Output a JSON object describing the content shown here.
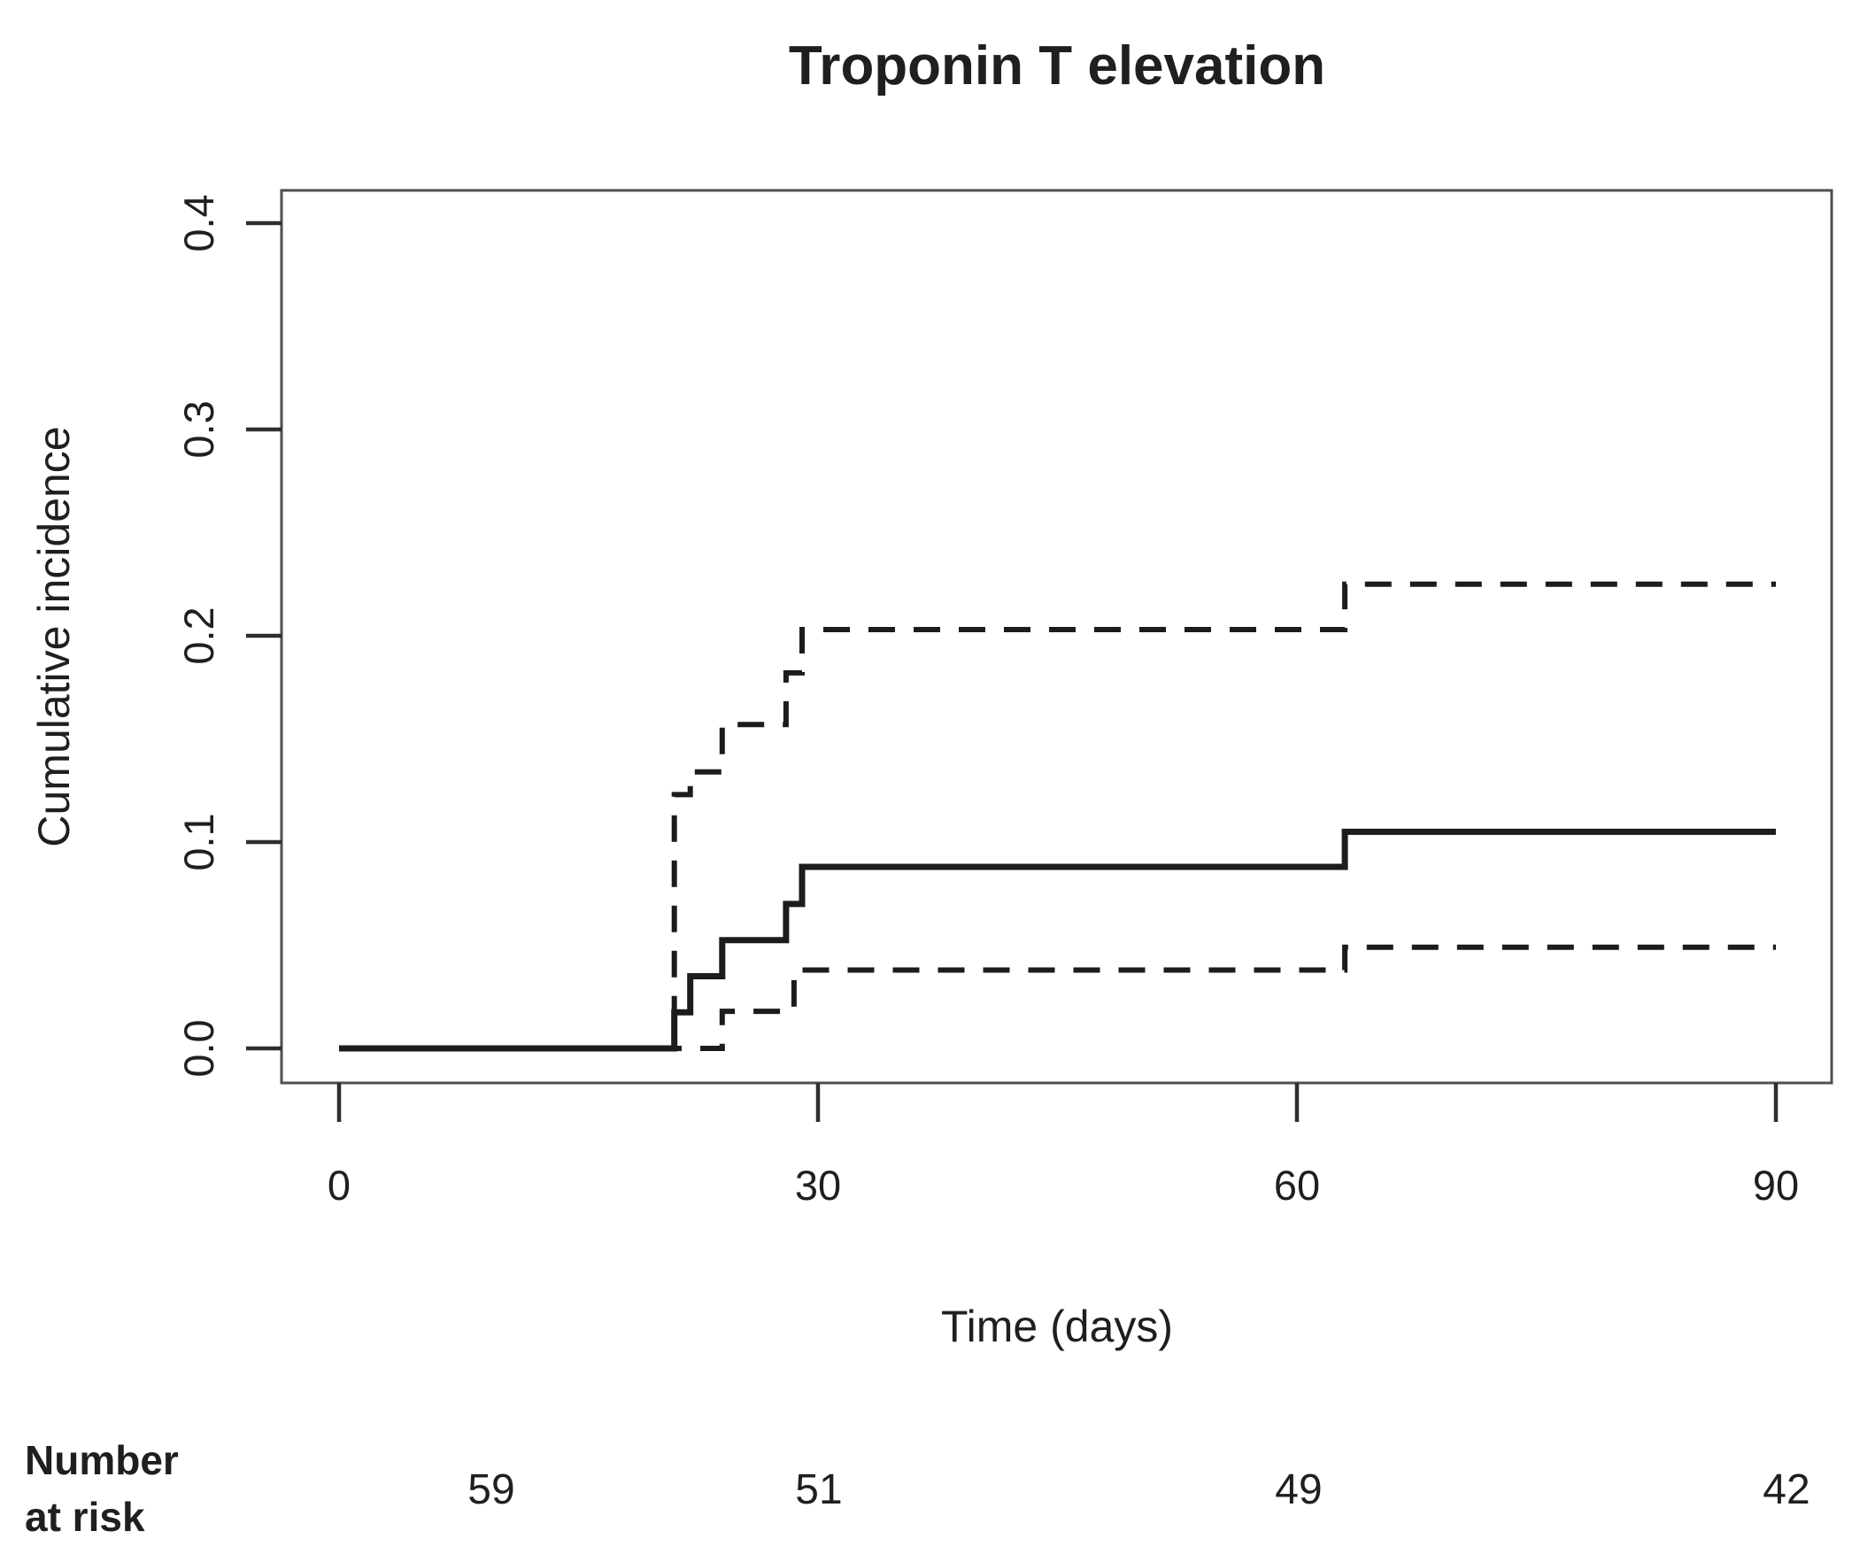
{
  "figure": {
    "background": "#ffffff"
  },
  "chart_data": {
    "type": "line",
    "subtype": "step-function-cumulative-incidence",
    "title": "Troponin T elevation",
    "xlabel": "Time (days)",
    "ylabel": "Cumulative incidence",
    "xlim": [
      0,
      90
    ],
    "ylim": [
      0.0,
      0.4
    ],
    "grid": false,
    "legend_position": "none",
    "x_ticks": [
      {
        "value": 0,
        "label": "0"
      },
      {
        "value": 30,
        "label": "30"
      },
      {
        "value": 60,
        "label": "60"
      },
      {
        "value": 90,
        "label": "90"
      }
    ],
    "y_ticks": [
      {
        "value": 0.0,
        "label": "0.0"
      },
      {
        "value": 0.1,
        "label": "0.1"
      },
      {
        "value": 0.2,
        "label": "0.2"
      },
      {
        "value": 0.3,
        "label": "0.3"
      },
      {
        "value": 0.4,
        "label": "0.4"
      }
    ],
    "series": [
      {
        "name": "cumulative-incidence-estimate",
        "style": "solid",
        "points": [
          [
            0,
            0
          ],
          [
            21,
            0.0175
          ],
          [
            22,
            0.035
          ],
          [
            24,
            0.0525
          ],
          [
            28,
            0.07
          ],
          [
            29,
            0.088
          ],
          [
            63,
            0.105
          ],
          [
            90,
            0.105
          ]
        ]
      },
      {
        "name": "upper-confidence-limit",
        "style": "dashed",
        "points": [
          [
            0,
            0
          ],
          [
            21,
            0.123
          ],
          [
            22,
            0.134
          ],
          [
            24,
            0.157
          ],
          [
            28,
            0.182
          ],
          [
            29,
            0.203
          ],
          [
            63,
            0.225
          ],
          [
            90,
            0.225
          ]
        ]
      },
      {
        "name": "lower-confidence-limit",
        "style": "dashed",
        "points": [
          [
            0,
            0
          ],
          [
            24,
            0.018
          ],
          [
            28.5,
            0.038
          ],
          [
            63,
            0.049
          ],
          [
            90,
            0.049
          ]
        ]
      }
    ]
  },
  "at_risk": {
    "label_line1": "Number",
    "label_line2": "at risk",
    "values": [
      "59",
      "51",
      "49",
      "42"
    ]
  },
  "colors": {
    "line": "#1c1c1c",
    "axis_box": "#4f4f4f",
    "tick": "#2e2e2e",
    "text": "#1f1f1f",
    "background": "#ffffff"
  }
}
